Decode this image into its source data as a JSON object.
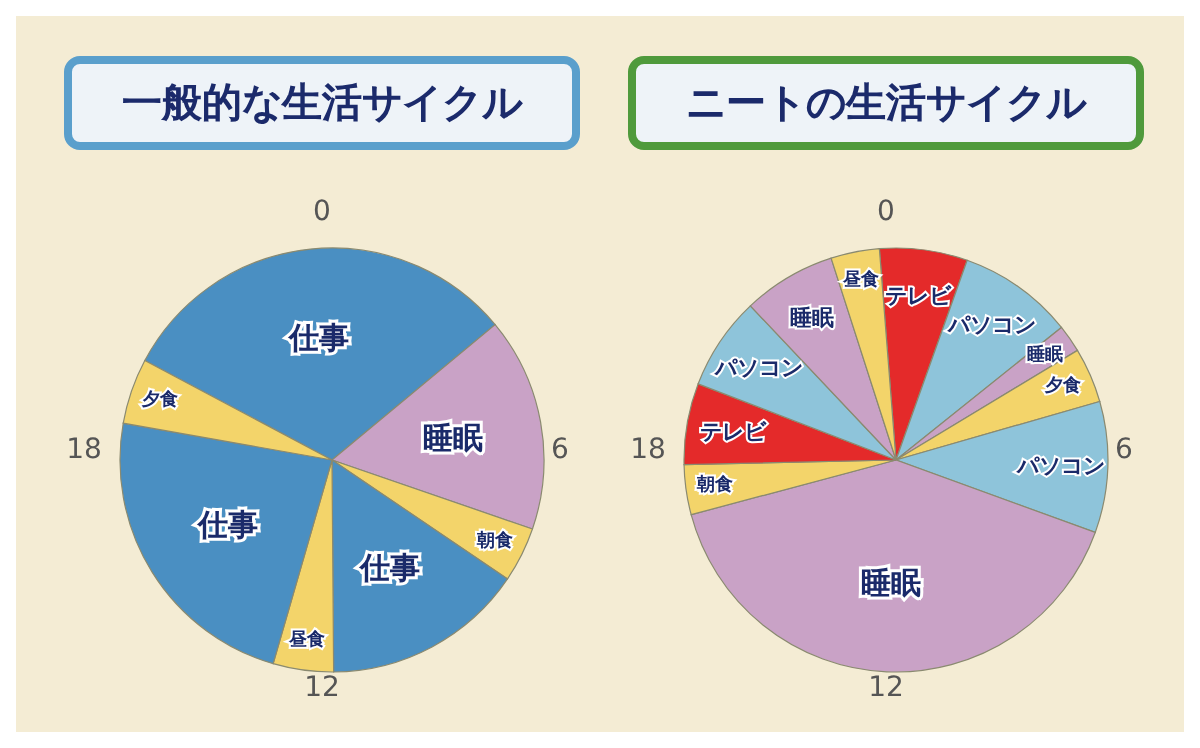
{
  "chart_data": [
    {
      "type": "pie",
      "title": "一般的な生活サイクル",
      "categories": [
        "仕事",
        "睡眠",
        "朝食",
        "仕事",
        "昼食",
        "仕事",
        "夕食"
      ],
      "values": [
        31.2,
        16.3,
        4.2,
        15.4,
        4.6,
        23.3,
        5.0
      ],
      "colors": [
        "#4a8fc2",
        "#c9a2c6",
        "#f3d46a",
        "#4a8fc2",
        "#f3d46a",
        "#4a8fc2",
        "#f3d46a"
      ],
      "annotations": [
        "0",
        "6",
        "12",
        "18"
      ]
    },
    {
      "type": "pie",
      "title": "ニートの生活サイクル",
      "categories": [
        "テレビ",
        "パソコン",
        "睡眠",
        "夕食",
        "パソコン",
        "睡眠",
        "朝食",
        "テレビ",
        "パソコン",
        "睡眠",
        "昼食"
      ],
      "values": [
        6.7,
        8.8,
        2.1,
        4.2,
        10.0,
        40.3,
        3.8,
        6.2,
        7.1,
        7.1,
        3.7
      ],
      "colors": [
        "#e42a2a",
        "#8ec4da",
        "#c9a2c6",
        "#f3d46a",
        "#8ec4da",
        "#c9a2c6",
        "#f3d46a",
        "#e42a2a",
        "#8ec4da",
        "#c9a2c6",
        "#f3d46a"
      ],
      "annotations": [
        "0",
        "6",
        "12",
        "18"
      ]
    }
  ]
}
